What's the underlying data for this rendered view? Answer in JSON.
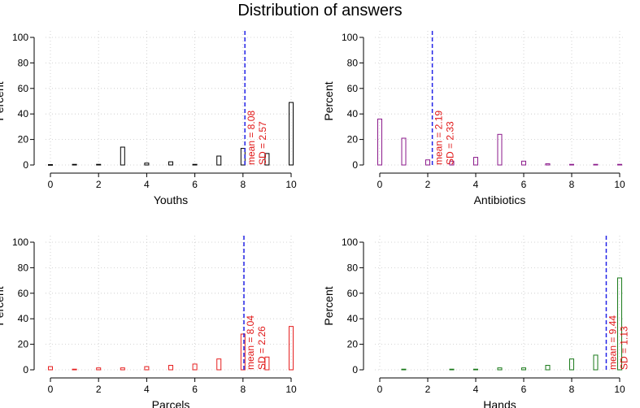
{
  "title": "Distribution of answers",
  "colors": {
    "mean_line": "#2323e6",
    "annotation": "#e01515",
    "grid": "#c8c8c8",
    "axis": "#000000"
  },
  "chart_data": [
    {
      "type": "bar",
      "title": "Youths",
      "xlabel": "Youths",
      "ylabel": "Percent",
      "color": "#000000",
      "x": [
        0,
        1,
        2,
        3,
        4,
        5,
        6,
        7,
        8,
        9,
        10
      ],
      "values": [
        0.3,
        0.5,
        0.5,
        14,
        1.5,
        2.5,
        0.5,
        7,
        13,
        9,
        49
      ],
      "mean": 8.08,
      "sd": 2.57,
      "mean_label": "mean = 8.08",
      "sd_label": "SD = 2.57",
      "xlim": [
        0,
        10
      ],
      "ylim": [
        0,
        100
      ],
      "xticks": [
        "0",
        "2",
        "4",
        "6",
        "8",
        "10"
      ],
      "yticks": [
        "0",
        "20",
        "40",
        "60",
        "80",
        "100"
      ]
    },
    {
      "type": "bar",
      "title": "Antibiotics",
      "xlabel": "Antibiotics",
      "ylabel": "Percent",
      "color": "#8b1a8b",
      "x": [
        0,
        1,
        2,
        3,
        4,
        5,
        6,
        7,
        8,
        9,
        10
      ],
      "values": [
        36,
        21,
        4,
        3,
        6,
        24,
        3,
        1,
        0.5,
        0.5,
        0.5
      ],
      "mean": 2.19,
      "sd": 2.33,
      "mean_label": "mean = 2.19",
      "sd_label": "SD = 2.33",
      "xlim": [
        0,
        10
      ],
      "ylim": [
        0,
        100
      ],
      "xticks": [
        "0",
        "2",
        "4",
        "6",
        "8",
        "10"
      ],
      "yticks": [
        "0",
        "20",
        "40",
        "60",
        "80",
        "100"
      ]
    },
    {
      "type": "bar",
      "title": "Parcels",
      "xlabel": "Parcels",
      "ylabel": "Percent",
      "color": "#e62020",
      "x": [
        0,
        1,
        2,
        3,
        4,
        5,
        6,
        7,
        8,
        9,
        10
      ],
      "values": [
        2.5,
        0.5,
        1.5,
        1.5,
        2.5,
        3.5,
        4.5,
        8.5,
        28,
        10,
        34
      ],
      "mean": 8.04,
      "sd": 2.26,
      "mean_label": "mean = 8.04",
      "sd_label": "SD = 2.26",
      "xlim": [
        0,
        10
      ],
      "ylim": [
        0,
        100
      ],
      "xticks": [
        "0",
        "2",
        "4",
        "6",
        "8",
        "10"
      ],
      "yticks": [
        "0",
        "20",
        "40",
        "60",
        "80",
        "100"
      ]
    },
    {
      "type": "bar",
      "title": "Hands",
      "xlabel": "Hands",
      "ylabel": "Percent",
      "color": "#1a7a1a",
      "x": [
        0,
        1,
        2,
        3,
        4,
        5,
        6,
        7,
        8,
        9,
        10
      ],
      "values": [
        0,
        0.5,
        0,
        0.5,
        0.5,
        1.5,
        1.5,
        3.5,
        8.5,
        11.5,
        72
      ],
      "mean": 9.44,
      "sd": 1.13,
      "mean_label": "mean = 9.44",
      "sd_label": "SD = 1.13",
      "xlim": [
        0,
        10
      ],
      "ylim": [
        0,
        100
      ],
      "xticks": [
        "0",
        "2",
        "4",
        "6",
        "8",
        "10"
      ],
      "yticks": [
        "0",
        "20",
        "40",
        "60",
        "80",
        "100"
      ]
    }
  ]
}
